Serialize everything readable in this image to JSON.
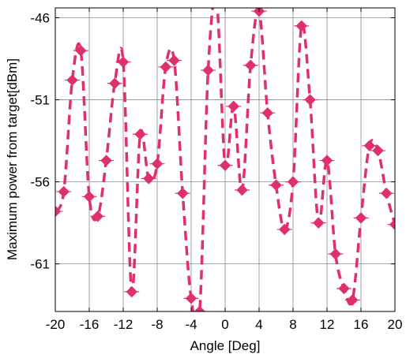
{
  "chart_data": {
    "type": "line",
    "title": "",
    "xlabel": "Angle [Deg]",
    "ylabel": "Maximum power from target[dBm]",
    "xlim": [
      -20,
      20
    ],
    "ylim": [
      -63.9,
      -45.4
    ],
    "xticks": [
      -20,
      -16,
      -12,
      -8,
      -4,
      0,
      4,
      8,
      12,
      16,
      20
    ],
    "yticks": [
      -46,
      -51,
      -56,
      -61
    ],
    "grid": true,
    "series": [
      {
        "color": "#E0306A",
        "line_style": "dashed",
        "marker": "diamond",
        "x": [
          -20,
          -19,
          -18,
          -17,
          -16,
          -15,
          -14,
          -13,
          -12,
          -11,
          -10,
          -9,
          -8,
          -7,
          -6,
          -5,
          -4,
          -3,
          -2,
          -1,
          0,
          1,
          2,
          3,
          4,
          5,
          6,
          7,
          8,
          9,
          10,
          11,
          12,
          13,
          14,
          15,
          16,
          17,
          18,
          19,
          20
        ],
        "y": [
          -57.8,
          -56.6,
          -49.8,
          -48.0,
          -56.9,
          -58.1,
          -54.7,
          -50.0,
          -48.7,
          -62.7,
          -53.1,
          -55.8,
          -54.9,
          -49.0,
          -48.6,
          -56.7,
          -63.1,
          -63.9,
          -49.2,
          -45.0,
          -55.0,
          -51.4,
          -56.5,
          -48.9,
          -45.6,
          -51.8,
          -56.2,
          -58.9,
          -56.0,
          -46.5,
          -51.0,
          -58.5,
          -54.7,
          -60.4,
          -62.5,
          -63.2,
          -58.2,
          -53.8,
          -54.1,
          -56.7,
          -58.6
        ]
      }
    ]
  }
}
